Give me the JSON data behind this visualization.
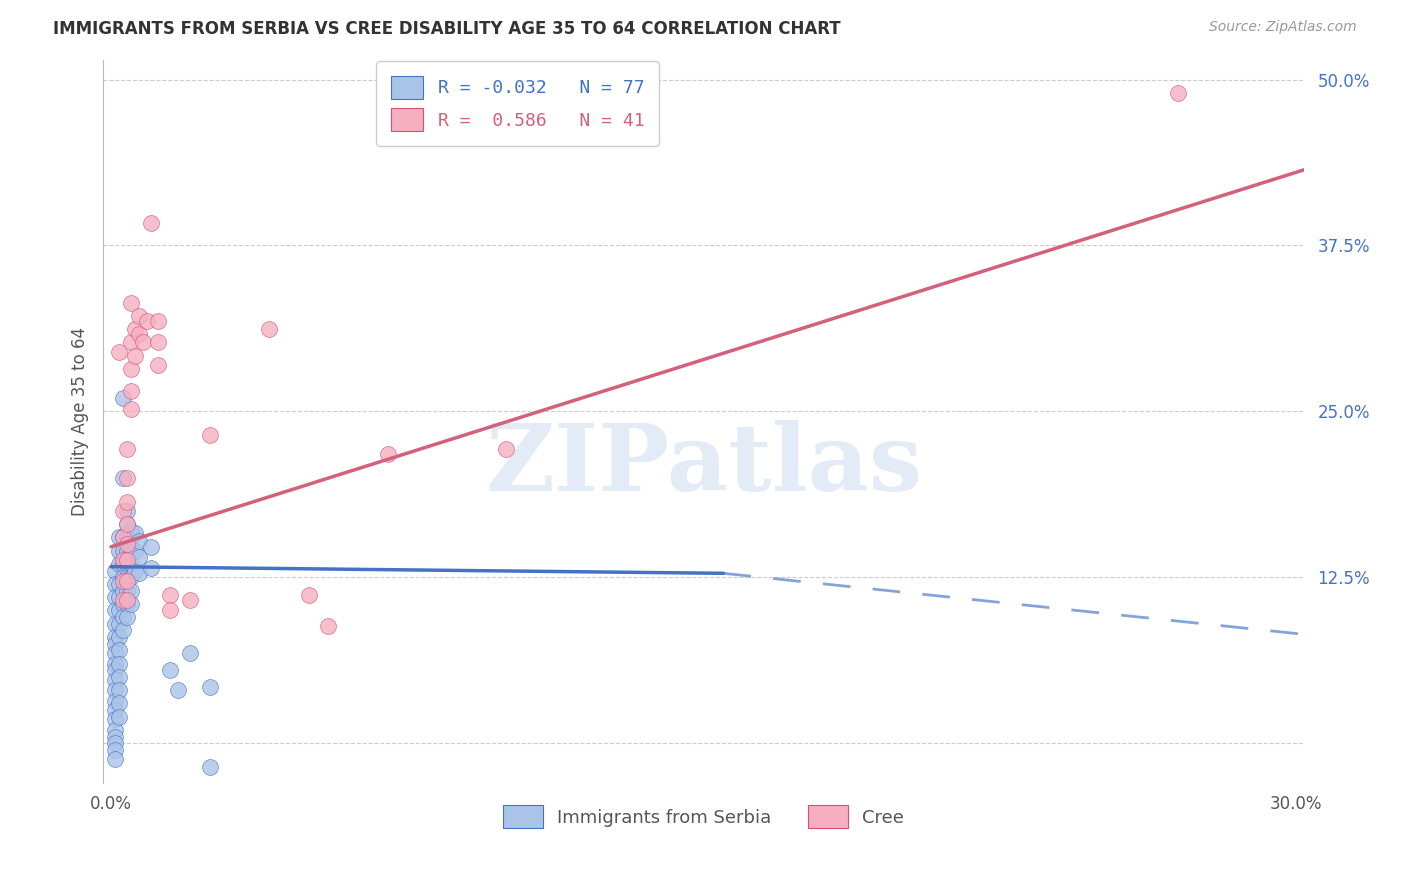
{
  "title": "IMMIGRANTS FROM SERBIA VS CREE DISABILITY AGE 35 TO 64 CORRELATION CHART",
  "source": "Source: ZipAtlas.com",
  "ylabel": "Disability Age 35 to 64",
  "xlim": [
    -0.002,
    0.302
  ],
  "ylim": [
    -0.03,
    0.515
  ],
  "xticks": [
    0.0,
    0.05,
    0.1,
    0.15,
    0.2,
    0.25,
    0.3
  ],
  "xticklabels": [
    "0.0%",
    "",
    "",
    "",
    "",
    "",
    "30.0%"
  ],
  "ytick_positions": [
    0.0,
    0.125,
    0.25,
    0.375,
    0.5
  ],
  "ytick_labels": [
    "",
    "12.5%",
    "25.0%",
    "37.5%",
    "50.0%"
  ],
  "serbia_color": "#aac4e8",
  "cree_color": "#f5afc0",
  "serbia_edge_color": "#4472c4",
  "cree_edge_color": "#d4507a",
  "serbia_line_color": "#4472c4",
  "cree_line_color": "#d4607a",
  "watermark": "ZIPatlas",
  "serbia_points": [
    [
      0.001,
      0.13
    ],
    [
      0.001,
      0.12
    ],
    [
      0.001,
      0.11
    ],
    [
      0.001,
      0.1
    ],
    [
      0.001,
      0.09
    ],
    [
      0.001,
      0.08
    ],
    [
      0.001,
      0.075
    ],
    [
      0.001,
      0.068
    ],
    [
      0.001,
      0.06
    ],
    [
      0.001,
      0.055
    ],
    [
      0.001,
      0.048
    ],
    [
      0.001,
      0.04
    ],
    [
      0.001,
      0.032
    ],
    [
      0.001,
      0.025
    ],
    [
      0.001,
      0.018
    ],
    [
      0.001,
      0.01
    ],
    [
      0.001,
      0.005
    ],
    [
      0.001,
      0.0
    ],
    [
      0.001,
      -0.005
    ],
    [
      0.001,
      -0.012
    ],
    [
      0.002,
      0.155
    ],
    [
      0.002,
      0.145
    ],
    [
      0.002,
      0.135
    ],
    [
      0.002,
      0.12
    ],
    [
      0.002,
      0.11
    ],
    [
      0.002,
      0.1
    ],
    [
      0.002,
      0.09
    ],
    [
      0.002,
      0.08
    ],
    [
      0.002,
      0.07
    ],
    [
      0.002,
      0.06
    ],
    [
      0.002,
      0.05
    ],
    [
      0.002,
      0.04
    ],
    [
      0.002,
      0.03
    ],
    [
      0.002,
      0.02
    ],
    [
      0.003,
      0.26
    ],
    [
      0.003,
      0.2
    ],
    [
      0.003,
      0.155
    ],
    [
      0.003,
      0.145
    ],
    [
      0.003,
      0.135
    ],
    [
      0.003,
      0.125
    ],
    [
      0.003,
      0.115
    ],
    [
      0.003,
      0.105
    ],
    [
      0.003,
      0.095
    ],
    [
      0.003,
      0.085
    ],
    [
      0.004,
      0.175
    ],
    [
      0.004,
      0.165
    ],
    [
      0.004,
      0.155
    ],
    [
      0.004,
      0.145
    ],
    [
      0.004,
      0.135
    ],
    [
      0.004,
      0.125
    ],
    [
      0.004,
      0.115
    ],
    [
      0.004,
      0.105
    ],
    [
      0.004,
      0.095
    ],
    [
      0.005,
      0.16
    ],
    [
      0.005,
      0.148
    ],
    [
      0.005,
      0.135
    ],
    [
      0.005,
      0.125
    ],
    [
      0.005,
      0.115
    ],
    [
      0.005,
      0.105
    ],
    [
      0.006,
      0.158
    ],
    [
      0.006,
      0.145
    ],
    [
      0.006,
      0.13
    ],
    [
      0.007,
      0.152
    ],
    [
      0.007,
      0.14
    ],
    [
      0.007,
      0.128
    ],
    [
      0.01,
      0.148
    ],
    [
      0.01,
      0.132
    ],
    [
      0.015,
      0.055
    ],
    [
      0.017,
      0.04
    ],
    [
      0.02,
      0.068
    ],
    [
      0.025,
      0.042
    ],
    [
      0.025,
      -0.018
    ]
  ],
  "cree_points": [
    [
      0.002,
      0.295
    ],
    [
      0.003,
      0.175
    ],
    [
      0.003,
      0.155
    ],
    [
      0.003,
      0.138
    ],
    [
      0.003,
      0.122
    ],
    [
      0.003,
      0.108
    ],
    [
      0.004,
      0.222
    ],
    [
      0.004,
      0.2
    ],
    [
      0.004,
      0.182
    ],
    [
      0.004,
      0.165
    ],
    [
      0.004,
      0.15
    ],
    [
      0.004,
      0.138
    ],
    [
      0.004,
      0.122
    ],
    [
      0.004,
      0.108
    ],
    [
      0.005,
      0.332
    ],
    [
      0.005,
      0.302
    ],
    [
      0.005,
      0.282
    ],
    [
      0.005,
      0.265
    ],
    [
      0.005,
      0.252
    ],
    [
      0.006,
      0.312
    ],
    [
      0.006,
      0.292
    ],
    [
      0.007,
      0.322
    ],
    [
      0.007,
      0.308
    ],
    [
      0.008,
      0.302
    ],
    [
      0.009,
      0.318
    ],
    [
      0.01,
      0.392
    ],
    [
      0.012,
      0.318
    ],
    [
      0.012,
      0.302
    ],
    [
      0.012,
      0.285
    ],
    [
      0.015,
      0.112
    ],
    [
      0.015,
      0.1
    ],
    [
      0.02,
      0.108
    ],
    [
      0.025,
      0.232
    ],
    [
      0.04,
      0.312
    ],
    [
      0.05,
      0.112
    ],
    [
      0.055,
      0.088
    ],
    [
      0.07,
      0.218
    ],
    [
      0.1,
      0.222
    ],
    [
      0.27,
      0.49
    ]
  ],
  "serbia_trend_x0": 0.0,
  "serbia_trend_y0": 0.133,
  "serbia_trend_x_solid_end": 0.155,
  "serbia_trend_y_solid_end": 0.128,
  "serbia_trend_x1": 0.302,
  "serbia_trend_y1": 0.082,
  "cree_trend_x0": 0.0,
  "cree_trend_y0": 0.148,
  "cree_trend_x1": 0.302,
  "cree_trend_y1": 0.432
}
